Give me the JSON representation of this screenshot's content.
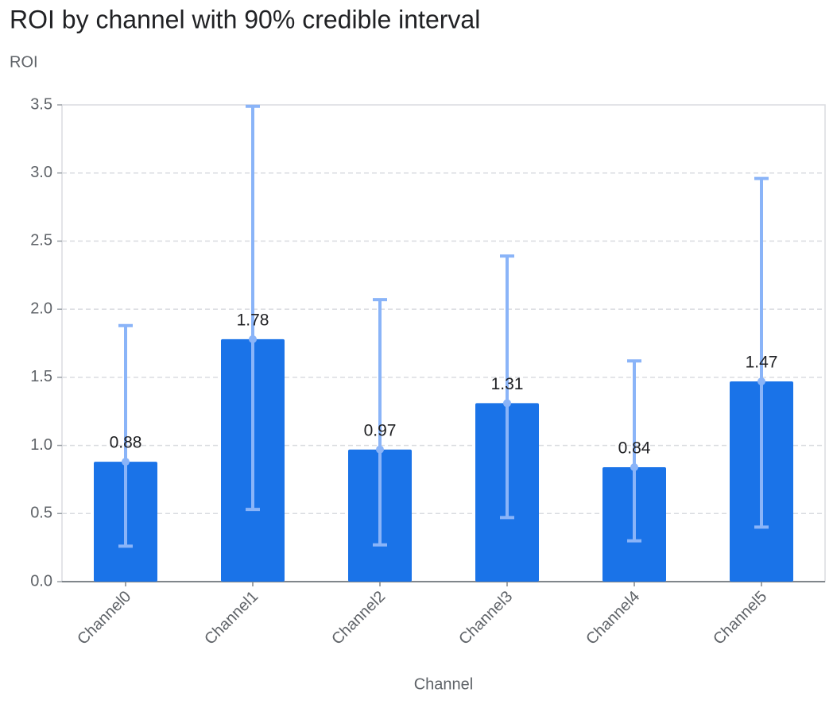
{
  "chart_data": {
    "type": "bar",
    "title": "ROI by channel with 90% credible interval",
    "y_label": "ROI",
    "x_label": "Channel",
    "categories": [
      "Channel0",
      "Channel1",
      "Channel2",
      "Channel3",
      "Channel4",
      "Channel5"
    ],
    "values": [
      0.88,
      1.78,
      0.97,
      1.31,
      0.84,
      1.47
    ],
    "lower": [
      0.26,
      0.53,
      0.27,
      0.47,
      0.3,
      0.4
    ],
    "upper": [
      1.88,
      3.49,
      2.07,
      2.39,
      1.62,
      2.96
    ],
    "color": "#1a73e8",
    "interval_color": "#8ab4f8",
    "ylim": [
      0,
      3.5
    ],
    "yticks": [
      {
        "value": 0,
        "label": "0.0"
      },
      0.5,
      {
        "value": 1,
        "label": "1.0"
      },
      1.5,
      {
        "value": 2,
        "label": "2.0"
      },
      2.5,
      {
        "value": 3,
        "label": "3.0"
      },
      3.5
    ],
    "grid": true
  }
}
